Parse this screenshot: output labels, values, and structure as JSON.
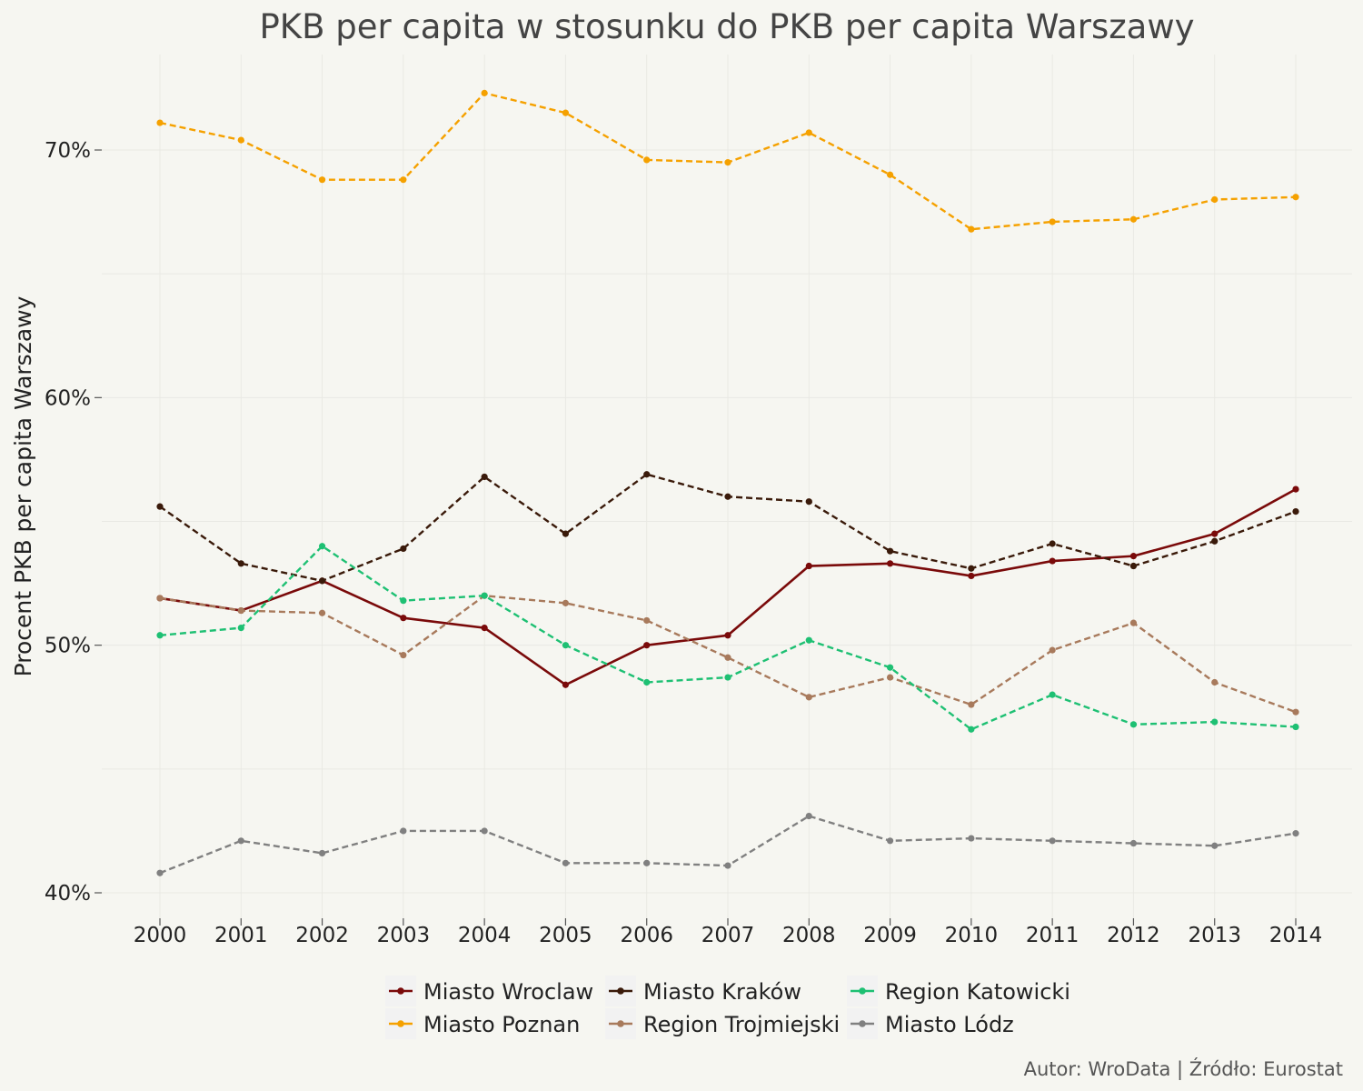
{
  "chart_data": {
    "type": "line",
    "title": "PKB per capita w stosunku do PKB per capita Warszawy",
    "ylabel": "Procent PKB per capita Warszawy",
    "xlabel": "",
    "x": [
      2000,
      2001,
      2002,
      2003,
      2004,
      2005,
      2006,
      2007,
      2008,
      2009,
      2010,
      2011,
      2012,
      2013,
      2014
    ],
    "ylim": [
      39.0,
      74.0
    ],
    "yticks": [
      40,
      50,
      60,
      70
    ],
    "ytick_labels": [
      "40%",
      "50%",
      "60%",
      "70%"
    ],
    "grid": true,
    "legend_position": "bottom",
    "series": [
      {
        "name": "Miasto Wroclaw",
        "color": "#7a0a0a",
        "dash": "solid",
        "values": [
          51.9,
          51.4,
          52.6,
          51.1,
          50.7,
          48.4,
          50.0,
          50.4,
          53.2,
          53.3,
          52.8,
          53.4,
          53.6,
          54.5,
          56.3
        ]
      },
      {
        "name": "Miasto Poznan",
        "color": "#f5a100",
        "dash": "dashed",
        "values": [
          71.1,
          70.4,
          68.8,
          68.8,
          72.3,
          71.5,
          69.6,
          69.5,
          70.7,
          69.0,
          66.8,
          67.1,
          67.2,
          68.0,
          68.1
        ]
      },
      {
        "name": "Miasto Kraków",
        "color": "#3a1a0a",
        "dash": "dashed",
        "values": [
          55.6,
          53.3,
          52.6,
          53.9,
          56.8,
          54.5,
          56.9,
          56.0,
          55.8,
          53.8,
          53.1,
          54.1,
          53.2,
          54.2,
          55.4
        ]
      },
      {
        "name": "Region Trojmiejski",
        "color": "#a87a5c",
        "dash": "dashed",
        "values": [
          51.9,
          51.4,
          51.3,
          49.6,
          52.0,
          51.7,
          51.0,
          49.5,
          47.9,
          48.7,
          47.6,
          49.8,
          50.9,
          48.5,
          47.3
        ]
      },
      {
        "name": "Region Katowicki",
        "color": "#1ec073",
        "dash": "dashed",
        "values": [
          50.4,
          50.7,
          54.0,
          51.8,
          52.0,
          50.0,
          48.5,
          48.7,
          50.2,
          49.1,
          46.6,
          48.0,
          46.8,
          46.9,
          46.7
        ]
      },
      {
        "name": "Miasto Lódz",
        "color": "#808080",
        "dash": "dashed",
        "values": [
          40.8,
          42.1,
          41.6,
          42.5,
          42.5,
          41.2,
          41.2,
          41.1,
          43.1,
          42.1,
          42.2,
          42.1,
          42.0,
          41.9,
          42.4
        ]
      }
    ],
    "caption": "Autor: WroData | Źródło: Eurostat"
  }
}
